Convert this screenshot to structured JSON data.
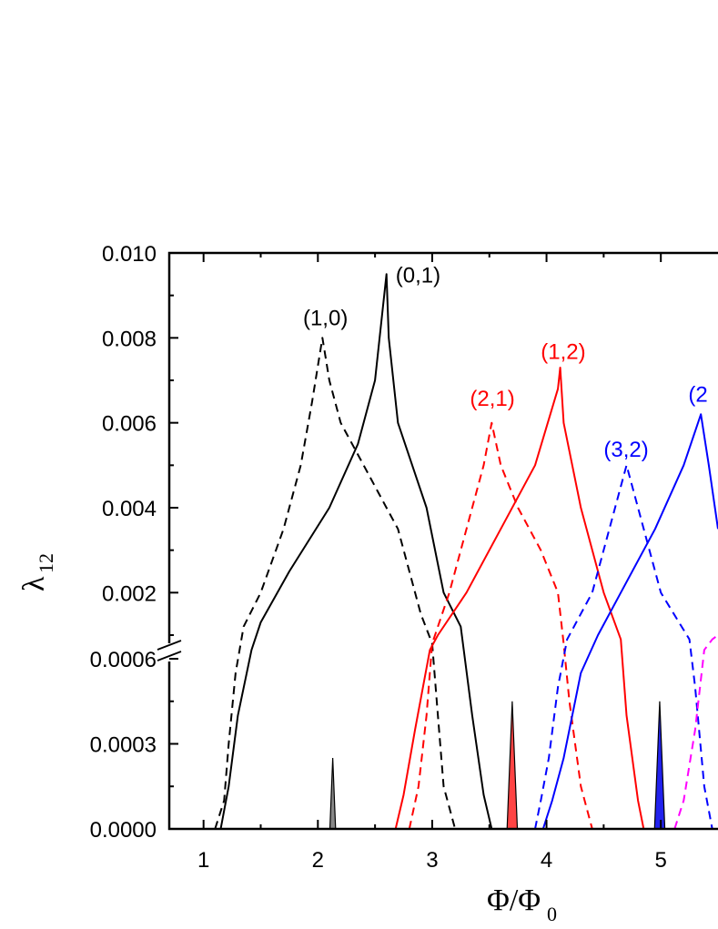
{
  "chart_data": {
    "type": "line",
    "xlabel": "Φ/Φ",
    "xlabel_sub": "0",
    "ylabel": "λ",
    "ylabel_sub": "12",
    "xlim": [
      0.7,
      5.5
    ],
    "x_ticks": [
      "1",
      "2",
      "3",
      "4",
      "5"
    ],
    "y_ticks_upper": [
      "0.002",
      "0.004",
      "0.006",
      "0.008",
      "0.010"
    ],
    "y_ticks_lower": [
      "0.0000",
      "0.0003",
      "0.0006"
    ],
    "y_axis_break": true,
    "ylim_lower": [
      0,
      0.0006
    ],
    "ylim_upper": [
      0.0007,
      0.01
    ],
    "grid": false,
    "series": [
      {
        "name": "(1,0)",
        "color": "#000000",
        "style": "dashed",
        "points": [
          [
            1.1,
            0
          ],
          [
            1.18,
            0.0001
          ],
          [
            1.22,
            0.0003
          ],
          [
            1.28,
            0.00055
          ],
          [
            1.35,
            0.0012
          ],
          [
            1.5,
            0.002
          ],
          [
            1.7,
            0.0035
          ],
          [
            1.85,
            0.005
          ],
          [
            1.95,
            0.0065
          ],
          [
            2.04,
            0.008
          ],
          [
            2.1,
            0.007
          ],
          [
            2.2,
            0.006
          ],
          [
            2.4,
            0.005
          ],
          [
            2.6,
            0.004
          ],
          [
            2.7,
            0.0035
          ],
          [
            2.9,
            0.0015
          ],
          [
            3.0,
            0.0008
          ],
          [
            3.05,
            0.0004
          ],
          [
            3.1,
            0.00015
          ],
          [
            3.2,
            0
          ]
        ]
      },
      {
        "name": "(0,1)",
        "color": "#000000",
        "style": "solid",
        "points": [
          [
            1.15,
            0
          ],
          [
            1.22,
            0.00015
          ],
          [
            1.3,
            0.0004
          ],
          [
            1.42,
            0.00065
          ],
          [
            1.5,
            0.0013
          ],
          [
            1.75,
            0.0025
          ],
          [
            2.1,
            0.004
          ],
          [
            2.35,
            0.0055
          ],
          [
            2.5,
            0.007
          ],
          [
            2.6,
            0.0095
          ],
          [
            2.62,
            0.008
          ],
          [
            2.7,
            0.006
          ],
          [
            2.95,
            0.004
          ],
          [
            3.1,
            0.002
          ],
          [
            3.25,
            0.0012
          ],
          [
            3.35,
            0.0004
          ],
          [
            3.45,
            0.00012
          ],
          [
            3.52,
            0
          ]
        ]
      },
      {
        "name": "(2,1)",
        "color": "#ff0000",
        "style": "dashed",
        "points": [
          [
            2.8,
            0
          ],
          [
            2.88,
            0.00015
          ],
          [
            2.95,
            0.0004
          ],
          [
            3.0,
            0.0008
          ],
          [
            3.15,
            0.002
          ],
          [
            3.35,
            0.004
          ],
          [
            3.45,
            0.005
          ],
          [
            3.52,
            0.006
          ],
          [
            3.6,
            0.005
          ],
          [
            3.75,
            0.004
          ],
          [
            3.95,
            0.003
          ],
          [
            4.1,
            0.002
          ],
          [
            4.15,
            0.0008
          ],
          [
            4.2,
            0.00045
          ],
          [
            4.3,
            0.00015
          ],
          [
            4.4,
            0
          ]
        ]
      },
      {
        "name": "(1,2)",
        "color": "#ff0000",
        "style": "solid",
        "points": [
          [
            2.68,
            0
          ],
          [
            2.75,
            0.00012
          ],
          [
            2.85,
            0.00035
          ],
          [
            2.98,
            0.00065
          ],
          [
            3.05,
            0.001
          ],
          [
            3.3,
            0.002
          ],
          [
            3.6,
            0.0035
          ],
          [
            3.9,
            0.005
          ],
          [
            4.1,
            0.0068
          ],
          [
            4.12,
            0.0073
          ],
          [
            4.15,
            0.006
          ],
          [
            4.3,
            0.004
          ],
          [
            4.5,
            0.002
          ],
          [
            4.65,
            0.0009
          ],
          [
            4.7,
            0.0004
          ],
          [
            4.8,
            0.0001
          ],
          [
            4.85,
            0
          ]
        ]
      },
      {
        "name": "(3,2)",
        "color": "#0000ff",
        "style": "dashed",
        "points": [
          [
            3.9,
            0
          ],
          [
            3.95,
            0.0001
          ],
          [
            4.02,
            0.00025
          ],
          [
            4.1,
            0.0005
          ],
          [
            4.18,
            0.0009
          ],
          [
            4.4,
            0.002
          ],
          [
            4.6,
            0.004
          ],
          [
            4.7,
            0.005
          ],
          [
            4.8,
            0.004
          ],
          [
            5.0,
            0.002
          ],
          [
            5.25,
            0.0009
          ],
          [
            5.3,
            0.0005
          ],
          [
            5.38,
            0.00015
          ],
          [
            5.45,
            0
          ]
        ]
      },
      {
        "name": "(2",
        "color": "#0000ff",
        "style": "solid",
        "points": [
          [
            3.97,
            0
          ],
          [
            4.05,
            0.0001
          ],
          [
            4.15,
            0.00025
          ],
          [
            4.3,
            0.00055
          ],
          [
            4.45,
            0.001
          ],
          [
            4.65,
            0.002
          ],
          [
            4.95,
            0.0035
          ],
          [
            5.2,
            0.005
          ],
          [
            5.35,
            0.0062
          ],
          [
            5.42,
            0.005
          ],
          [
            5.5,
            0.0035
          ]
        ]
      },
      {
        "name": "",
        "color": "#ff00ff",
        "style": "dashed",
        "points": [
          [
            5.12,
            0
          ],
          [
            5.2,
            0.0001
          ],
          [
            5.3,
            0.00035
          ],
          [
            5.38,
            0.00065
          ],
          [
            5.45,
            0.0009
          ],
          [
            5.5,
            0.001
          ]
        ]
      }
    ],
    "spikes": [
      {
        "x": 2.13,
        "half_width": 0.025,
        "peak": 0.00025,
        "fill": "#888888"
      },
      {
        "x": 3.7,
        "half_width": 0.045,
        "peak": 0.00045,
        "fill": "#ff4444"
      },
      {
        "x": 4.99,
        "half_width": 0.045,
        "peak": 0.00045,
        "fill": "#2222ee"
      }
    ],
    "annotations": [
      {
        "text": "(1,0)",
        "x": 1.87,
        "y": 0.0083,
        "color": "#000000"
      },
      {
        "text": "(0,1)",
        "x": 2.68,
        "y": 0.0093,
        "color": "#000000"
      },
      {
        "text": "(2,1)",
        "x": 3.33,
        "y": 0.0064,
        "color": "#ff0000"
      },
      {
        "text": "(1,2)",
        "x": 3.95,
        "y": 0.0075,
        "color": "#ff0000"
      },
      {
        "text": "(3,2)",
        "x": 4.5,
        "y": 0.0052,
        "color": "#0000ff"
      },
      {
        "text": "(2",
        "x": 5.24,
        "y": 0.0065,
        "color": "#0000ff"
      }
    ]
  }
}
